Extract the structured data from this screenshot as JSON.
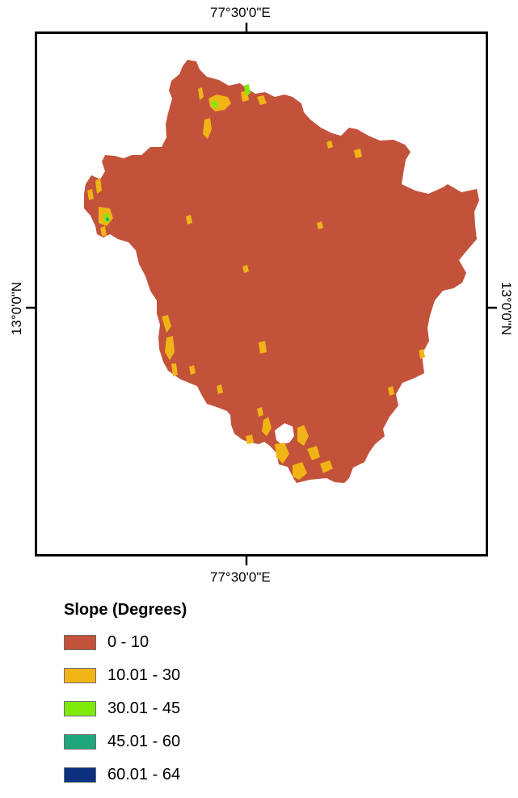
{
  "map": {
    "top_label": "77°30'0\"E",
    "bottom_label": "77°30'0\"E",
    "left_label": "13°0'0\"N",
    "right_label": "13°0'0\"N"
  },
  "legend": {
    "title": "Slope (Degrees)",
    "items": [
      {
        "label": "0 - 10",
        "color": "#C3523B"
      },
      {
        "label": "10.01 - 30",
        "color": "#F0B416"
      },
      {
        "label": "30.01 - 45",
        "color": "#7FEA0A"
      },
      {
        "label": "45.01 - 60",
        "color": "#1FA67A"
      },
      {
        "label": "60.01 - 64",
        "color": "#0C2F7E"
      }
    ]
  }
}
